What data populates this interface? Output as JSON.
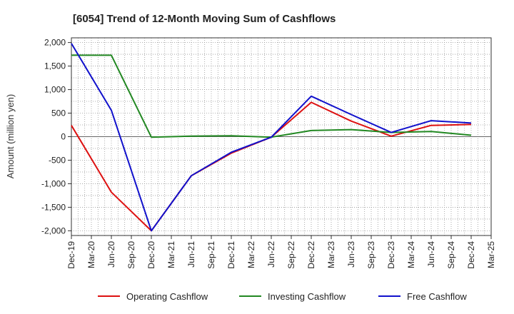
{
  "chart_data": {
    "type": "line",
    "title": "[6054]  Trend of 12-Month Moving Sum of Cashflows",
    "xlabel": "",
    "ylabel": "Amount (million yen)",
    "ylim": [
      -2100,
      2100
    ],
    "yticks": [
      2000,
      1500,
      1000,
      500,
      0,
      -500,
      -1000,
      -1500,
      -2000
    ],
    "ytick_labels": [
      "2,000",
      "1,500",
      "1,000",
      "500",
      "0",
      "-500",
      "-1,000",
      "-1,500",
      "-2,000"
    ],
    "x_labels": [
      "Dec-19",
      "Mar-20",
      "Jun-20",
      "Sep-20",
      "Dec-20",
      "Mar-21",
      "Jun-21",
      "Sep-21",
      "Dec-21",
      "Mar-22",
      "Jun-22",
      "Sep-22",
      "Dec-22",
      "Mar-23",
      "Jun-23",
      "Sep-23",
      "Dec-23",
      "Mar-24",
      "Jun-24",
      "Sep-24",
      "Dec-24",
      "Mar-25"
    ],
    "grid": true,
    "legend_position": "bottom",
    "series": [
      {
        "name": "Operating Cashflow",
        "color": "#dd1111",
        "points": [
          {
            "x": "Dec-19",
            "y": 240
          },
          {
            "x": "Jun-20",
            "y": -1180
          },
          {
            "x": "Dec-20",
            "y": -2000
          },
          {
            "x": "Jun-21",
            "y": -830
          },
          {
            "x": "Dec-21",
            "y": -350
          },
          {
            "x": "Jun-22",
            "y": -10
          },
          {
            "x": "Dec-22",
            "y": 730
          },
          {
            "x": "Jun-23",
            "y": 330
          },
          {
            "x": "Dec-23",
            "y": 10
          },
          {
            "x": "Jun-24",
            "y": 240
          },
          {
            "x": "Dec-24",
            "y": 260
          }
        ]
      },
      {
        "name": "Investing Cashflow",
        "color": "#228822",
        "points": [
          {
            "x": "Dec-19",
            "y": 1730
          },
          {
            "x": "Jun-20",
            "y": 1730
          },
          {
            "x": "Dec-20",
            "y": -10
          },
          {
            "x": "Jun-21",
            "y": 10
          },
          {
            "x": "Dec-21",
            "y": 20
          },
          {
            "x": "Jun-22",
            "y": -10
          },
          {
            "x": "Dec-22",
            "y": 130
          },
          {
            "x": "Jun-23",
            "y": 150
          },
          {
            "x": "Dec-23",
            "y": 90
          },
          {
            "x": "Jun-24",
            "y": 110
          },
          {
            "x": "Dec-24",
            "y": 30
          }
        ]
      },
      {
        "name": "Free Cashflow",
        "color": "#1111cc",
        "points": [
          {
            "x": "Dec-19",
            "y": 1980
          },
          {
            "x": "Jun-20",
            "y": 560
          },
          {
            "x": "Dec-20",
            "y": -2000
          },
          {
            "x": "Jun-21",
            "y": -830
          },
          {
            "x": "Dec-21",
            "y": -330
          },
          {
            "x": "Jun-22",
            "y": -10
          },
          {
            "x": "Dec-22",
            "y": 860
          },
          {
            "x": "Jun-23",
            "y": 470
          },
          {
            "x": "Dec-23",
            "y": 90
          },
          {
            "x": "Jun-24",
            "y": 340
          },
          {
            "x": "Dec-24",
            "y": 290
          }
        ]
      }
    ]
  }
}
